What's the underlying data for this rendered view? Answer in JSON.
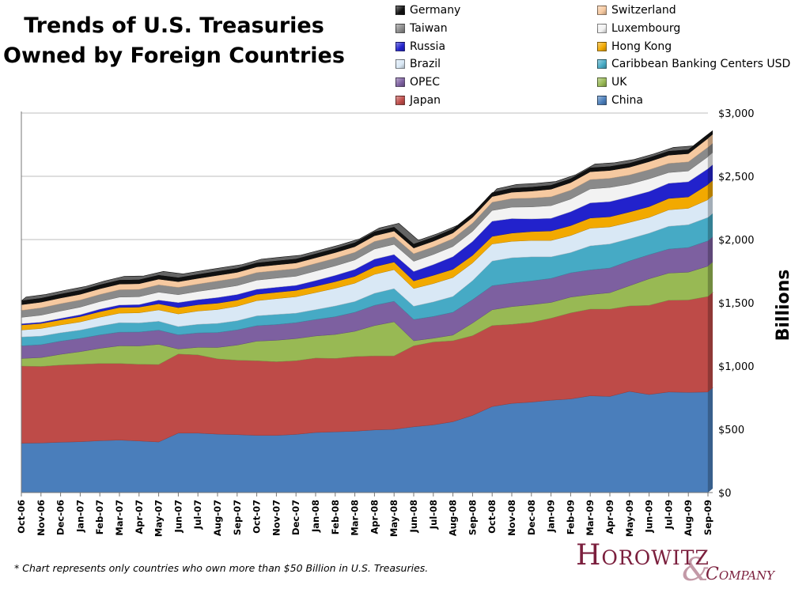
{
  "title": {
    "line1": "Trends of U.S. Treasuries",
    "line2": "Owned by Foreign Countries"
  },
  "footnote": "* Chart represents only countries who own more than $50 Billion in U.S. Treasuries.",
  "logo": {
    "word1": "Horowitz",
    "amp": "&",
    "word2": "Company"
  },
  "legend_order": [
    "Germany",
    "Switzerland",
    "Taiwan",
    "Luxembourg",
    "Russia",
    "Hong Kong",
    "Brazil",
    "Caribbean Banking Centers USD",
    "OPEC",
    "UK",
    "Japan",
    "China"
  ],
  "chart_data": {
    "type": "area",
    "stacked": true,
    "grid": true,
    "ylabel": "Billions",
    "ylim": [
      0,
      3000
    ],
    "yticks": [
      0,
      500,
      1000,
      1500,
      2000,
      2500,
      3000
    ],
    "ytick_labels": [
      "$0",
      "$500",
      "$1,000",
      "$1,500",
      "$2,000",
      "$2,500",
      "$3,000"
    ],
    "x": [
      "Oct-06",
      "Nov-06",
      "Dec-06",
      "Jan-07",
      "Feb-07",
      "Mar-07",
      "Apr-07",
      "May-07",
      "Jun-07",
      "Jul-07",
      "Aug-07",
      "Sep-07",
      "Oct-07",
      "Nov-07",
      "Dec-07",
      "Jan-08",
      "Feb-08",
      "Mar-08",
      "Apr-08",
      "May-08",
      "Jun-08",
      "Jul-08",
      "Aug-08",
      "Sep-08",
      "Oct-08",
      "Nov-08",
      "Dec-08",
      "Jan-09",
      "Feb-09",
      "Mar-09",
      "Apr-09",
      "May-09",
      "Jun-09",
      "Jul-09",
      "Aug-09",
      "Sep-09"
    ],
    "series": [
      {
        "name": "China",
        "color": "#4a7ebb",
        "values": [
          390,
          392,
          398,
          402,
          410,
          415,
          408,
          400,
          470,
          470,
          462,
          458,
          452,
          452,
          460,
          475,
          480,
          485,
          495,
          500,
          520,
          535,
          560,
          610,
          680,
          705,
          715,
          730,
          740,
          765,
          760,
          800,
          775,
          795,
          792,
          795
        ]
      },
      {
        "name": "Japan",
        "color": "#be4b48",
        "values": [
          610,
          605,
          610,
          612,
          610,
          605,
          606,
          612,
          625,
          618,
          595,
          588,
          590,
          582,
          582,
          588,
          580,
          590,
          585,
          580,
          640,
          655,
          640,
          630,
          640,
          625,
          630,
          648,
          680,
          685,
          690,
          675,
          705,
          725,
          730,
          755
        ]
      },
      {
        "name": "UK",
        "color": "#98b954",
        "values": [
          60,
          70,
          85,
          100,
          120,
          140,
          145,
          160,
          40,
          60,
          90,
          120,
          155,
          170,
          175,
          175,
          190,
          200,
          240,
          270,
          40,
          30,
          45,
          100,
          125,
          140,
          140,
          125,
          125,
          115,
          130,
          160,
          210,
          215,
          220,
          240
        ]
      },
      {
        "name": "OPEC",
        "color": "#7d60a0",
        "values": [
          100,
          102,
          104,
          105,
          106,
          108,
          110,
          112,
          112,
          114,
          118,
          120,
          122,
          124,
          126,
          130,
          140,
          150,
          160,
          162,
          168,
          172,
          180,
          185,
          190,
          186,
          188,
          190,
          192,
          195,
          195,
          196,
          190,
          190,
          195,
          200
        ]
      },
      {
        "name": "Caribbean Banking Centers USD",
        "color": "#46aac5",
        "values": [
          70,
          68,
          66,
          65,
          70,
          75,
          72,
          70,
          65,
          68,
          72,
          72,
          78,
          80,
          75,
          78,
          85,
          85,
          95,
          100,
          105,
          115,
          125,
          150,
          195,
          200,
          190,
          170,
          160,
          190,
          190,
          175,
          170,
          180,
          180,
          185
        ]
      },
      {
        "name": "Brazil",
        "color": "#d9e8f5",
        "values": [
          55,
          60,
          62,
          65,
          70,
          75,
          80,
          90,
          100,
          105,
          110,
          115,
          120,
          125,
          130,
          135,
          140,
          145,
          150,
          150,
          140,
          145,
          150,
          140,
          135,
          130,
          130,
          130,
          135,
          140,
          135,
          130,
          125,
          130,
          130,
          140
        ]
      },
      {
        "name": "Hong Kong",
        "color": "#f2a900",
        "values": [
          40,
          40,
          40,
          42,
          44,
          45,
          45,
          48,
          50,
          50,
          50,
          48,
          50,
          50,
          50,
          50,
          52,
          54,
          60,
          60,
          60,
          65,
          65,
          60,
          60,
          65,
          70,
          75,
          78,
          80,
          80,
          82,
          85,
          90,
          90,
          120
        ]
      },
      {
        "name": "Russia",
        "color": "#2222cc",
        "values": [
          10,
          10,
          12,
          15,
          20,
          20,
          20,
          30,
          40,
          40,
          45,
          45,
          40,
          40,
          40,
          45,
          50,
          55,
          60,
          60,
          75,
          85,
          100,
          110,
          120,
          115,
          100,
          100,
          110,
          120,
          120,
          120,
          120,
          120,
          120,
          125
        ]
      },
      {
        "name": "Luxembourg",
        "color": "#f2f2f2",
        "values": [
          50,
          55,
          58,
          60,
          60,
          62,
          62,
          62,
          62,
          65,
          70,
          70,
          72,
          72,
          72,
          75,
          75,
          75,
          80,
          80,
          80,
          80,
          80,
          80,
          85,
          90,
          95,
          100,
          100,
          110,
          112,
          100,
          100,
          85,
          85,
          95
        ]
      },
      {
        "name": "Taiwan",
        "color": "#8a8a8a",
        "values": [
          55,
          58,
          58,
          56,
          56,
          58,
          58,
          58,
          58,
          58,
          60,
          60,
          60,
          60,
          60,
          60,
          60,
          60,
          60,
          60,
          60,
          60,
          62,
          65,
          65,
          68,
          70,
          70,
          70,
          74,
          72,
          72,
          72,
          72,
          72,
          75
        ]
      },
      {
        "name": "Switzerland",
        "color": "#f6c9a0",
        "values": [
          45,
          45,
          45,
          45,
          45,
          45,
          45,
          45,
          45,
          45,
          45,
          45,
          45,
          45,
          45,
          45,
          45,
          45,
          45,
          45,
          45,
          45,
          45,
          45,
          45,
          50,
          55,
          60,
          60,
          62,
          62,
          62,
          64,
          65,
          65,
          70
        ]
      },
      {
        "name": "Germany",
        "color": "#111111",
        "values": [
          30,
          30,
          30,
          30,
          30,
          30,
          30,
          30,
          30,
          30,
          30,
          30,
          30,
          30,
          30,
          30,
          30,
          30,
          30,
          30,
          30,
          30,
          30,
          30,
          30,
          30,
          30,
          30,
          30,
          30,
          30,
          30,
          30,
          30,
          30,
          30
        ]
      }
    ]
  }
}
